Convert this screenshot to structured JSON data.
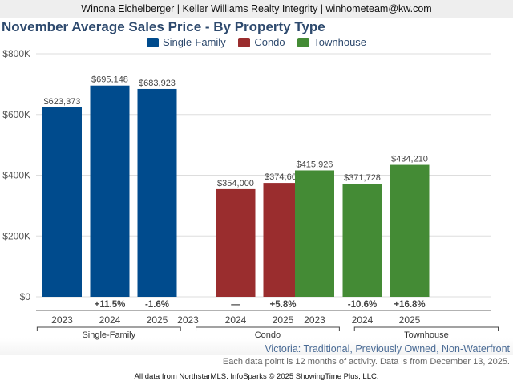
{
  "header": {
    "text": "Winona Eichelberger | Keller Williams Realty Integrity | winhometeam@kw.com"
  },
  "colors": {
    "Single-Family": "#004b8d",
    "Condo": "#9a2d2e",
    "Townhouse": "#448b35",
    "title": "#2e4a6e",
    "location": "#4a6b95"
  },
  "chart_data": {
    "type": "bar",
    "title": "November Average Sales Price - By Property Type",
    "xlabel": "",
    "ylabel": "",
    "ylim": [
      0,
      800000
    ],
    "yticks": [
      0,
      200000,
      400000,
      600000,
      800000
    ],
    "ytick_labels": [
      "$0",
      "$200K",
      "$400K",
      "$600K",
      "$800K"
    ],
    "grid": true,
    "legend": {
      "placement": "top-center",
      "entries": [
        "Single-Family",
        "Condo",
        "Townhouse"
      ]
    },
    "groups": [
      {
        "name": "Single-Family",
        "categories": [
          "2023",
          "2024",
          "2025"
        ],
        "values": [
          623373,
          695148,
          683923
        ],
        "value_labels": [
          "$623,373",
          "$695,148",
          "$683,923"
        ],
        "changes": [
          "",
          "+11.5%",
          "-1.6%"
        ]
      },
      {
        "name": "Condo",
        "categories": [
          "2023",
          "2024",
          "2025"
        ],
        "values": [
          null,
          354000,
          374667
        ],
        "value_labels": [
          "",
          "$354,000",
          "$374,667"
        ],
        "changes": [
          "",
          "—",
          "+5.8%"
        ]
      },
      {
        "name": "Townhouse",
        "categories": [
          "2023",
          "2024",
          "2025"
        ],
        "values": [
          415926,
          371728,
          434210
        ],
        "value_labels": [
          "$415,926",
          "$371,728",
          "$434,210"
        ],
        "changes": [
          "",
          "-10.6%",
          "+16.8%"
        ]
      }
    ]
  },
  "footer": {
    "location": "Victoria: Traditional, Previously Owned, Non-Waterfront",
    "note": "Each data point is 12 months of activity. Data is from December 13, 2025.",
    "source": "All data from NorthstarMLS. InfoSparks © 2025 ShowingTime Plus, LLC."
  }
}
